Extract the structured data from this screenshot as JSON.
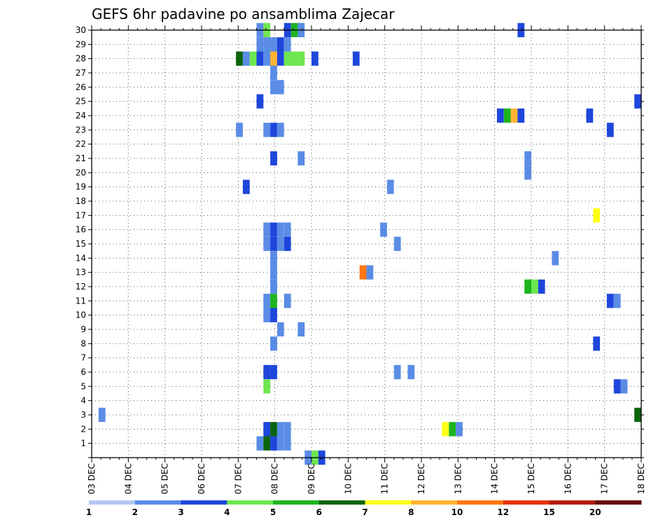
{
  "chart_data": {
    "type": "heatmap",
    "title": "GEFS 6hr padavine po ansamblima Zajecar",
    "xlabel": "",
    "ylabel": "",
    "x_labels": [
      "03 DEC",
      "04 DEC",
      "05 DEC",
      "06 DEC",
      "07 DEC",
      "08 DEC",
      "09 DEC",
      "10 DEC",
      "11 DEC",
      "12 DEC",
      "13 DEC",
      "14 DEC",
      "15 DEC",
      "16 DEC",
      "17 DEC",
      "18 DEC"
    ],
    "x_range_steps_6h": [
      0,
      60
    ],
    "y_labels": [
      "1",
      "2",
      "3",
      "4",
      "5",
      "6",
      "7",
      "8",
      "9",
      "10",
      "11",
      "12",
      "13",
      "14",
      "15",
      "16",
      "17",
      "18",
      "19",
      "20",
      "21",
      "22",
      "23",
      "24",
      "25",
      "26",
      "27",
      "28",
      "29",
      "30"
    ],
    "y_range": [
      0,
      30
    ],
    "grid": true,
    "legend_position": "bottom",
    "legend": {
      "levels": [
        1,
        2,
        3,
        4,
        5,
        6,
        7,
        8,
        10,
        12,
        15,
        20
      ],
      "colors": [
        "#b4c8f5",
        "#5a8ce6",
        "#1e46dc",
        "#6ee650",
        "#1eb41e",
        "#0a640a",
        "#ffff14",
        "#ffb432",
        "#ff7814",
        "#e6320a",
        "#b41e0a",
        "#640a0a"
      ]
    },
    "cells": [
      [
        0.25,
        3,
        1
      ],
      [
        5.25,
        28,
        5
      ],
      [
        5.5,
        28,
        1
      ],
      [
        5.75,
        28,
        3
      ],
      [
        6.0,
        28,
        2
      ],
      [
        6.25,
        28,
        1
      ],
      [
        6.5,
        28,
        2
      ],
      [
        7.5,
        28,
        3
      ],
      [
        8.0,
        28,
        2
      ],
      [
        9.5,
        28,
        2
      ],
      [
        5.25,
        23,
        1
      ],
      [
        6.0,
        30,
        1
      ],
      [
        6.0,
        29,
        1
      ],
      [
        6.0,
        25,
        2
      ],
      [
        6.0,
        1,
        1
      ],
      [
        6.25,
        30,
        3
      ],
      [
        6.25,
        29,
        1
      ],
      [
        6.25,
        23,
        1
      ],
      [
        6.25,
        16,
        1
      ],
      [
        6.25,
        15,
        1
      ],
      [
        6.25,
        11,
        1
      ],
      [
        6.25,
        10,
        1
      ],
      [
        6.25,
        6,
        2
      ],
      [
        6.25,
        5,
        3
      ],
      [
        6.25,
        2,
        2
      ],
      [
        6.25,
        1,
        5
      ],
      [
        6.5,
        29,
        1
      ],
      [
        6.5,
        28,
        7
      ],
      [
        6.5,
        27,
        1
      ],
      [
        6.5,
        26,
        1
      ],
      [
        6.5,
        23,
        2
      ],
      [
        6.5,
        21,
        2
      ],
      [
        6.5,
        16,
        2
      ],
      [
        6.5,
        15,
        2
      ],
      [
        6.5,
        14,
        1
      ],
      [
        6.5,
        13,
        1
      ],
      [
        6.5,
        12,
        1
      ],
      [
        6.5,
        11,
        4
      ],
      [
        6.5,
        10,
        2
      ],
      [
        6.5,
        8,
        1
      ],
      [
        6.5,
        6,
        2
      ],
      [
        6.5,
        2,
        5
      ],
      [
        6.5,
        1,
        2
      ],
      [
        6.75,
        29,
        2
      ],
      [
        6.75,
        28,
        2
      ],
      [
        6.75,
        26,
        1
      ],
      [
        6.75,
        23,
        1
      ],
      [
        6.75,
        16,
        1
      ],
      [
        6.75,
        15,
        1
      ],
      [
        6.75,
        9,
        1
      ],
      [
        6.75,
        2,
        1
      ],
      [
        6.75,
        1,
        1
      ],
      [
        7.0,
        30,
        2
      ],
      [
        7.0,
        29,
        1
      ],
      [
        7.0,
        28,
        3
      ],
      [
        7.0,
        16,
        1
      ],
      [
        7.0,
        15,
        2
      ],
      [
        7.0,
        11,
        1
      ],
      [
        7.0,
        2,
        1
      ],
      [
        7.0,
        1,
        1
      ],
      [
        7.25,
        30,
        4
      ],
      [
        7.25,
        28,
        3
      ],
      [
        7.5,
        30,
        1
      ],
      [
        7.5,
        21,
        1
      ],
      [
        7.5,
        9,
        1
      ],
      [
        7.75,
        0,
        1
      ],
      [
        8.0,
        0,
        3
      ],
      [
        8.25,
        0,
        2
      ],
      [
        5.5,
        19,
        2
      ],
      [
        9.75,
        13,
        8
      ],
      [
        10.0,
        13,
        1
      ],
      [
        10.5,
        16,
        1
      ],
      [
        10.75,
        19,
        1
      ],
      [
        11.0,
        15,
        1
      ],
      [
        11.0,
        6,
        1
      ],
      [
        11.5,
        6,
        1
      ],
      [
        12.75,
        2,
        6
      ],
      [
        13.0,
        2,
        4
      ],
      [
        13.25,
        2,
        1
      ],
      [
        14.75,
        24,
        2
      ],
      [
        15.0,
        24,
        4
      ],
      [
        15.25,
        24,
        7
      ],
      [
        15.5,
        24,
        2
      ],
      [
        15.5,
        30,
        2
      ],
      [
        15.75,
        21,
        1
      ],
      [
        15.75,
        20,
        1
      ],
      [
        15.75,
        12,
        4
      ],
      [
        16.0,
        12,
        3
      ],
      [
        16.25,
        12,
        2
      ],
      [
        16.75,
        14,
        1
      ],
      [
        18.0,
        24,
        2
      ],
      [
        18.25,
        17,
        6
      ],
      [
        18.25,
        8,
        2
      ],
      [
        18.75,
        23,
        2
      ],
      [
        18.75,
        11,
        2
      ],
      [
        19.0,
        11,
        1
      ],
      [
        19.0,
        5,
        2
      ],
      [
        19.25,
        5,
        1
      ],
      [
        19.75,
        25,
        2
      ],
      [
        19.75,
        3,
        5
      ]
    ]
  }
}
